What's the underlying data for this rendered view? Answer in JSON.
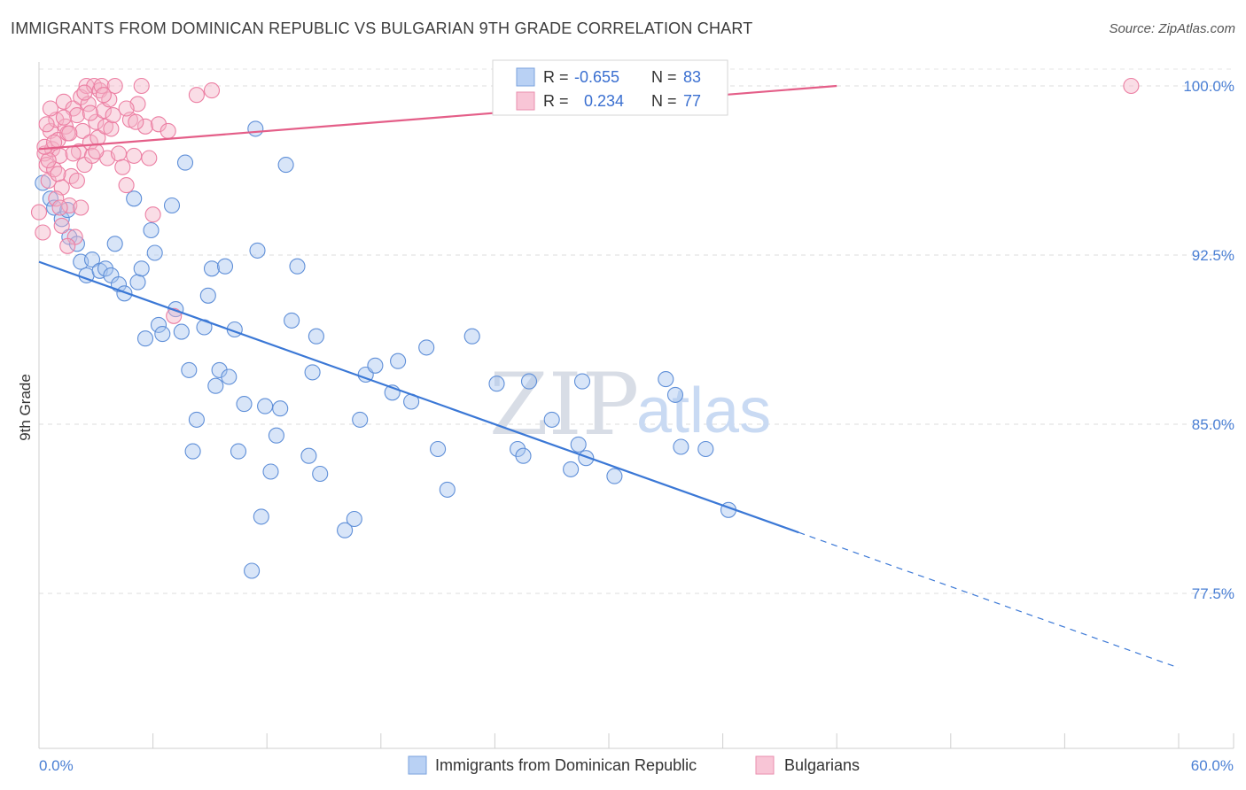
{
  "title": "IMMIGRANTS FROM DOMINICAN REPUBLIC VS BULGARIAN 9TH GRADE CORRELATION CHART",
  "source": "Source: ZipAtlas.com",
  "colors": {
    "blue": "#4a7fd4",
    "blue_fill": "#a9c6f0",
    "pink": "#e8608a",
    "pink_fill": "#f4b3c8",
    "grid": "#dcdcdc"
  },
  "watermark": {
    "zip": "ZIP",
    "atlas": "atlas"
  },
  "legend": {
    "r_label": "R =",
    "n_label": "N =",
    "rows": [
      {
        "r": "-0.655",
        "n": "83"
      },
      {
        "r": "0.234",
        "n": "77"
      }
    ]
  },
  "chart_data": {
    "type": "scatter",
    "title": "IMMIGRANTS FROM DOMINICAN REPUBLIC VS BULGARIAN 9TH GRADE CORRELATION CHART",
    "xlabel": "",
    "ylabel": "9th Grade",
    "xlim": [
      0,
      60
    ],
    "ylim": [
      70.5,
      101.5
    ],
    "x_tick_labels": [
      "0.0%",
      "60.0%"
    ],
    "y_ticks": [
      77.5,
      85.0,
      92.5,
      100.0
    ],
    "y_tick_labels": [
      "77.5%",
      "85.0%",
      "92.5%",
      "100.0%"
    ],
    "series": [
      {
        "name": "Immigrants from Dominican Republic",
        "color": "#4a7fd4",
        "trend": {
          "x": [
            0,
            40
          ],
          "y": [
            92.2,
            80.2
          ],
          "dashed_to": [
            60,
            74.2
          ]
        },
        "points": [
          [
            0.2,
            95.7
          ],
          [
            0.6,
            95.0
          ],
          [
            0.8,
            94.6
          ],
          [
            1.2,
            94.1
          ],
          [
            1.5,
            94.5
          ],
          [
            1.6,
            93.3
          ],
          [
            2.0,
            93.0
          ],
          [
            2.2,
            92.2
          ],
          [
            2.5,
            91.6
          ],
          [
            2.8,
            92.3
          ],
          [
            3.2,
            91.8
          ],
          [
            3.5,
            91.9
          ],
          [
            3.8,
            91.6
          ],
          [
            4.0,
            93.0
          ],
          [
            4.2,
            91.2
          ],
          [
            4.5,
            90.8
          ],
          [
            5.0,
            95.0
          ],
          [
            5.2,
            91.3
          ],
          [
            5.4,
            91.9
          ],
          [
            5.6,
            88.8
          ],
          [
            5.9,
            93.6
          ],
          [
            6.1,
            92.6
          ],
          [
            6.3,
            89.4
          ],
          [
            6.5,
            89.0
          ],
          [
            7.0,
            94.7
          ],
          [
            7.2,
            90.1
          ],
          [
            7.5,
            89.1
          ],
          [
            7.7,
            96.6
          ],
          [
            7.9,
            87.4
          ],
          [
            8.1,
            83.8
          ],
          [
            8.3,
            85.2
          ],
          [
            8.7,
            89.3
          ],
          [
            8.9,
            90.7
          ],
          [
            9.1,
            91.9
          ],
          [
            9.3,
            86.7
          ],
          [
            9.5,
            87.4
          ],
          [
            9.8,
            92.0
          ],
          [
            10.0,
            87.1
          ],
          [
            10.3,
            89.2
          ],
          [
            10.5,
            83.8
          ],
          [
            10.8,
            85.9
          ],
          [
            11.2,
            78.5
          ],
          [
            11.5,
            92.7
          ],
          [
            11.7,
            80.9
          ],
          [
            11.9,
            85.8
          ],
          [
            12.2,
            82.9
          ],
          [
            12.5,
            84.5
          ],
          [
            12.7,
            85.7
          ],
          [
            13.3,
            89.6
          ],
          [
            13.6,
            92.0
          ],
          [
            14.2,
            83.6
          ],
          [
            14.4,
            87.3
          ],
          [
            14.6,
            88.9
          ],
          [
            14.8,
            82.8
          ],
          [
            16.1,
            80.3
          ],
          [
            16.6,
            80.8
          ],
          [
            16.9,
            85.2
          ],
          [
            17.2,
            87.2
          ],
          [
            17.7,
            87.6
          ],
          [
            18.6,
            86.4
          ],
          [
            18.9,
            87.8
          ],
          [
            19.6,
            86.0
          ],
          [
            20.4,
            88.4
          ],
          [
            21.0,
            83.9
          ],
          [
            21.5,
            82.1
          ],
          [
            22.8,
            88.9
          ],
          [
            24.1,
            86.8
          ],
          [
            25.2,
            83.9
          ],
          [
            25.5,
            83.6
          ],
          [
            25.8,
            86.9
          ],
          [
            27.0,
            85.2
          ],
          [
            28.0,
            83.0
          ],
          [
            28.4,
            84.1
          ],
          [
            28.6,
            86.9
          ],
          [
            28.8,
            83.5
          ],
          [
            30.3,
            82.7
          ],
          [
            33.0,
            87.0
          ],
          [
            33.5,
            86.3
          ],
          [
            33.8,
            84.0
          ],
          [
            35.1,
            83.9
          ],
          [
            36.3,
            81.2
          ],
          [
            11.4,
            98.1
          ],
          [
            13.0,
            96.5
          ]
        ]
      },
      {
        "name": "Bulgarians",
        "color": "#e8608a",
        "trend": {
          "x": [
            0,
            42
          ],
          "y": [
            97.2,
            100.0
          ]
        },
        "points": [
          [
            0.3,
            97.0
          ],
          [
            0.4,
            96.5
          ],
          [
            0.5,
            95.8
          ],
          [
            0.6,
            98.0
          ],
          [
            0.7,
            97.2
          ],
          [
            0.8,
            96.3
          ],
          [
            0.9,
            98.5
          ],
          [
            1.0,
            97.6
          ],
          [
            1.1,
            96.9
          ],
          [
            1.2,
            95.5
          ],
          [
            1.3,
            99.3
          ],
          [
            1.4,
            98.2
          ],
          [
            1.5,
            97.9
          ],
          [
            1.6,
            94.7
          ],
          [
            1.7,
            96.0
          ],
          [
            1.8,
            99.0
          ],
          [
            1.9,
            93.3
          ],
          [
            2.0,
            98.7
          ],
          [
            2.1,
            97.1
          ],
          [
            2.2,
            99.5
          ],
          [
            2.3,
            98.0
          ],
          [
            2.4,
            96.5
          ],
          [
            2.5,
            100.0
          ],
          [
            2.6,
            99.2
          ],
          [
            2.7,
            97.5
          ],
          [
            2.8,
            96.9
          ],
          [
            2.9,
            100.0
          ],
          [
            3.0,
            98.4
          ],
          [
            3.1,
            97.7
          ],
          [
            3.2,
            99.8
          ],
          [
            3.3,
            100.0
          ],
          [
            3.4,
            98.9
          ],
          [
            3.5,
            98.2
          ],
          [
            3.6,
            96.8
          ],
          [
            3.7,
            99.4
          ],
          [
            3.8,
            98.1
          ],
          [
            4.0,
            100.0
          ],
          [
            4.2,
            97.0
          ],
          [
            4.4,
            96.4
          ],
          [
            4.6,
            95.6
          ],
          [
            4.8,
            98.5
          ],
          [
            5.0,
            96.9
          ],
          [
            5.2,
            99.2
          ],
          [
            5.4,
            100.0
          ],
          [
            5.6,
            98.2
          ],
          [
            6.0,
            94.3
          ],
          [
            6.3,
            98.3
          ],
          [
            6.8,
            98.0
          ],
          [
            7.1,
            89.8
          ],
          [
            8.3,
            99.6
          ],
          [
            9.1,
            99.8
          ],
          [
            0.2,
            93.5
          ],
          [
            0.5,
            96.7
          ],
          [
            0.9,
            95.0
          ],
          [
            1.2,
            93.8
          ],
          [
            1.5,
            92.9
          ],
          [
            1.8,
            97.0
          ],
          [
            2.2,
            94.6
          ],
          [
            0.3,
            97.3
          ],
          [
            0.4,
            98.3
          ],
          [
            0.6,
            99.0
          ],
          [
            0.8,
            97.5
          ],
          [
            1.0,
            96.1
          ],
          [
            1.3,
            98.6
          ],
          [
            1.6,
            97.9
          ],
          [
            2.0,
            95.8
          ],
          [
            2.4,
            99.7
          ],
          [
            2.7,
            98.8
          ],
          [
            3.0,
            97.1
          ],
          [
            3.4,
            99.6
          ],
          [
            3.9,
            98.7
          ],
          [
            4.6,
            99.0
          ],
          [
            5.1,
            98.4
          ],
          [
            5.8,
            96.8
          ],
          [
            57.5,
            100.0
          ],
          [
            0.0,
            94.4
          ],
          [
            1.1,
            94.6
          ]
        ]
      }
    ],
    "legend_position": "top-center"
  }
}
